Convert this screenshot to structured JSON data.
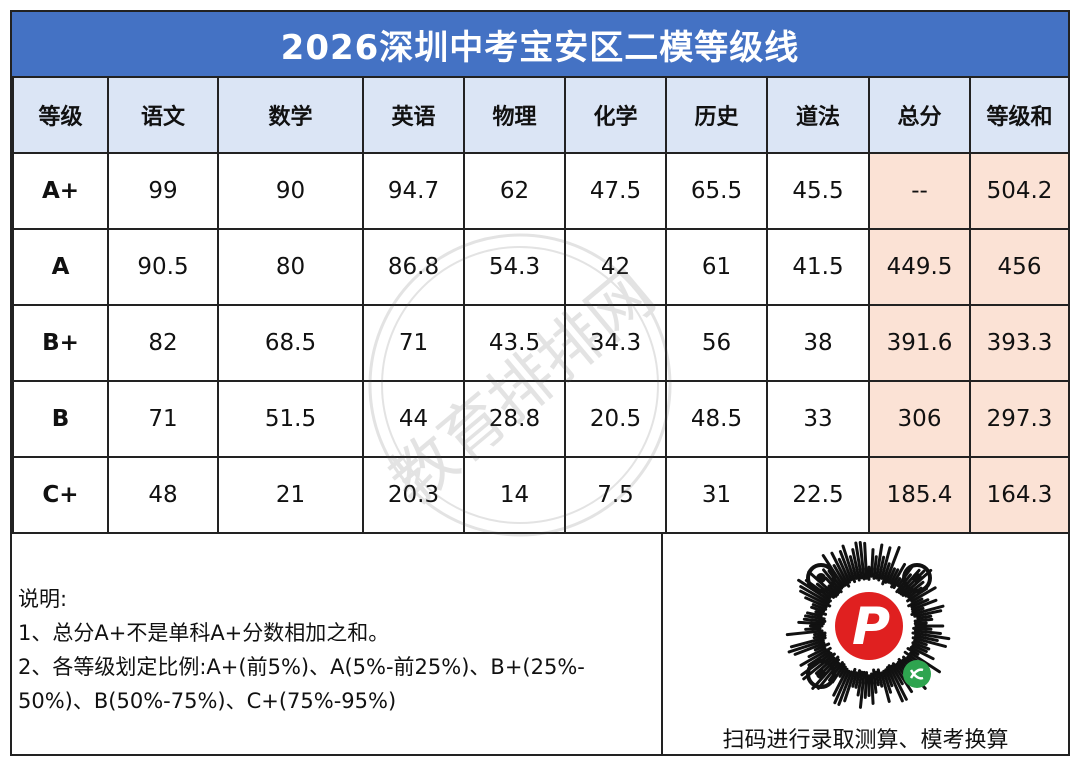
{
  "title": "2026深圳中考宝安区二模等级线",
  "table": {
    "headers": [
      "等级",
      "语文",
      "数学",
      "英语",
      "物理",
      "化学",
      "历史",
      "道法",
      "总分",
      "等级和"
    ],
    "rows": [
      [
        "A+",
        "99",
        "90",
        "94.7",
        "62",
        "47.5",
        "65.5",
        "45.5",
        "--",
        "504.2"
      ],
      [
        "A",
        "90.5",
        "80",
        "86.8",
        "54.3",
        "42",
        "61",
        "41.5",
        "449.5",
        "456"
      ],
      [
        "B+",
        "82",
        "68.5",
        "71",
        "43.5",
        "34.3",
        "56",
        "38",
        "391.6",
        "393.3"
      ],
      [
        "B",
        "71",
        "51.5",
        "44",
        "28.8",
        "20.5",
        "48.5",
        "33",
        "306",
        "297.3"
      ],
      [
        "C+",
        "48",
        "21",
        "20.3",
        "14",
        "7.5",
        "31",
        "22.5",
        "185.4",
        "164.3"
      ]
    ]
  },
  "notes": {
    "heading": "说明:",
    "line1": "1、总分A+不是单科A+分数相加之和。",
    "line2": "2、各等级划定比例:A+(前5%)、A(5%-前25%)、B+(25%-",
    "line3": "50%)、B(50%-75%)、C+(75%-95%)"
  },
  "qr": {
    "caption": "扫码进行录取测算、模考换算",
    "logo_letter": "P"
  },
  "watermark": "教育排排网",
  "colors": {
    "title_bg": "#4472c4",
    "header_bg": "#dbe5f5",
    "highlight_bg": "#fbe2d5",
    "logo_red": "#e02020",
    "mini_icon_green": "#2ea44f"
  }
}
